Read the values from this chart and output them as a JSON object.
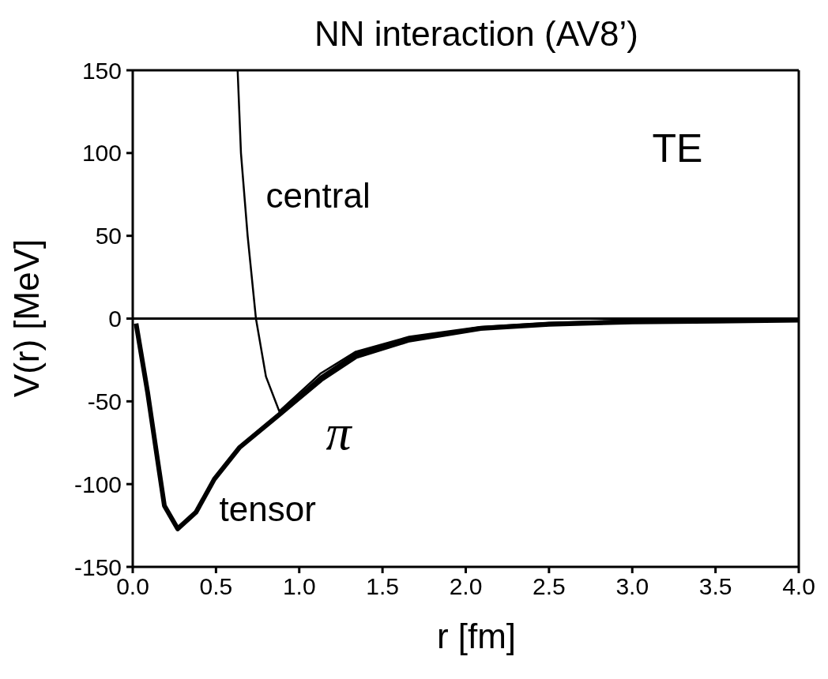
{
  "chart_data": {
    "type": "line",
    "title": "NN interaction (AV8’)",
    "xlabel": "r [fm]",
    "ylabel": "V(r) [MeV]",
    "xlim": [
      0,
      4
    ],
    "xticks": [
      {
        "value": 0,
        "label": "0.0"
      },
      {
        "value": 0.5,
        "label": "0.5"
      },
      {
        "value": 1,
        "label": "1.0"
      },
      {
        "value": 1.5,
        "label": "1.5"
      },
      {
        "value": 2,
        "label": "2.0"
      },
      {
        "value": 2.5,
        "label": "2.5"
      },
      {
        "value": 3,
        "label": "3.0"
      },
      {
        "value": 3.5,
        "label": "3.5"
      },
      {
        "value": 4,
        "label": "4.0"
      }
    ],
    "ylim": [
      -150,
      150
    ],
    "yticks": [
      -150,
      -100,
      -50,
      0,
      50,
      100,
      150
    ],
    "grid": false,
    "legend": false,
    "marker": "none",
    "line_style": "solid",
    "series": [
      {
        "name": "central",
        "color": "#000000",
        "x": [
          0.63,
          0.65,
          0.69,
          0.74,
          0.8,
          0.88,
          1.13,
          1.34,
          1.66,
          2.09,
          2.5,
          3.0,
          3.5,
          4.0
        ],
        "values": [
          150,
          100,
          50,
          0,
          -35,
          -56,
          -33,
          -20,
          -11,
          -5,
          -2.5,
          -1,
          -0.5,
          0
        ]
      },
      {
        "name": "tensor",
        "color": "#000000",
        "x": [
          0.02,
          0.09,
          0.15,
          0.19,
          0.27,
          0.38,
          0.49,
          0.64,
          0.88,
          1.13,
          1.34,
          1.66,
          2.09,
          2.5,
          3.0,
          3.5,
          4.0
        ],
        "values": [
          -3,
          -45,
          -86,
          -113,
          -127,
          -117,
          -97,
          -78,
          -58,
          -37,
          -23,
          -13,
          -6,
          -3.5,
          -2,
          -1.5,
          -1
        ]
      },
      {
        "name": "π",
        "color": "#000000",
        "x": [
          0.88,
          1.13,
          1.34,
          1.66,
          2.09,
          2.5,
          3.0,
          3.5,
          4.0
        ],
        "values": [
          -57,
          -35,
          -21,
          -12,
          -5.5,
          -3,
          -1.5,
          -1,
          -0.5
        ]
      }
    ],
    "ref_lines": [
      {
        "axis": "y",
        "value": 0,
        "color": "#000000"
      }
    ],
    "annotations": [
      "TE"
    ]
  }
}
